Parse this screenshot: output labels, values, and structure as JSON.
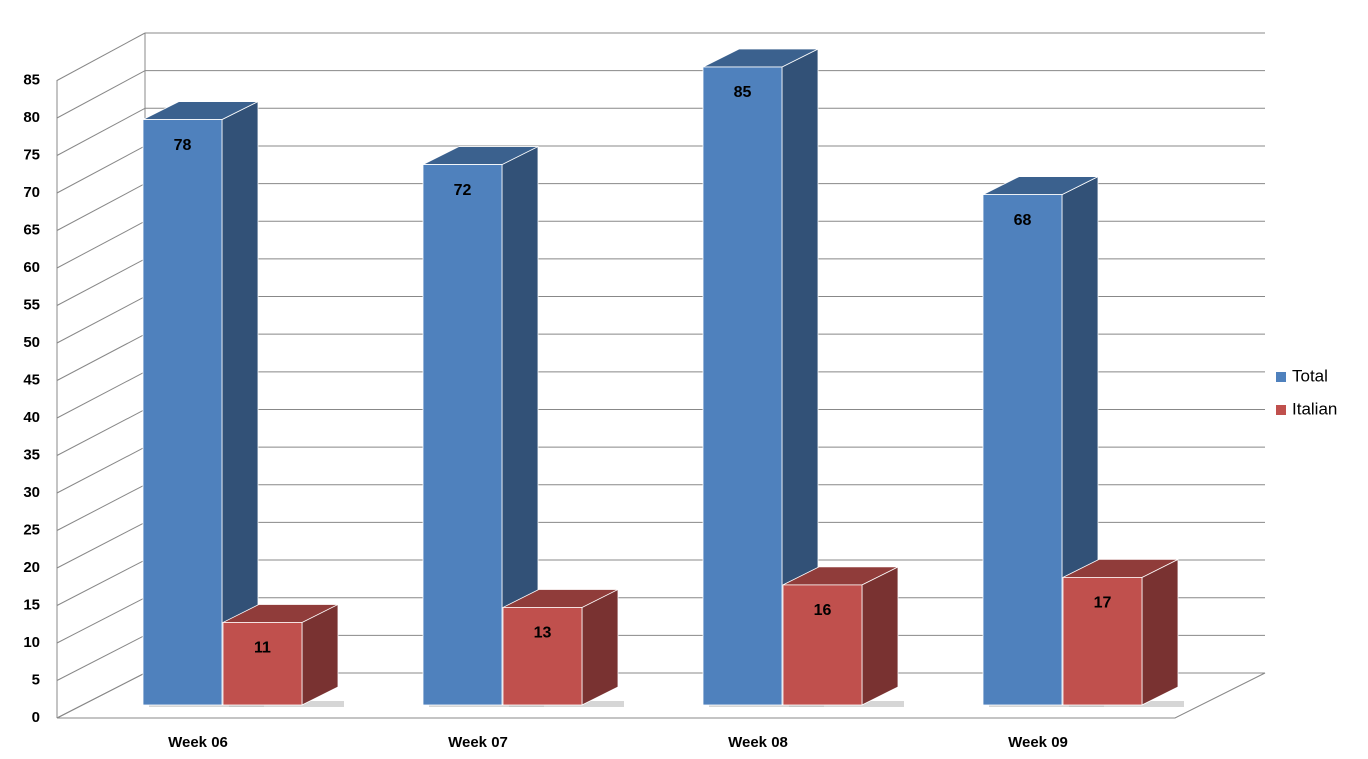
{
  "chart_data": {
    "type": "bar3d",
    "categories": [
      "Week 06",
      "Week 07",
      "Week 08",
      "Week 09"
    ],
    "series": [
      {
        "name": "Total",
        "color": "#4f81bd",
        "values": [
          78,
          72,
          85,
          68
        ]
      },
      {
        "name": "Italian",
        "color": "#c0504d",
        "values": [
          11,
          13,
          16,
          17
        ]
      }
    ],
    "ylim": [
      0,
      85
    ],
    "yticks": [
      0,
      5,
      10,
      15,
      20,
      25,
      30,
      35,
      40,
      45,
      50,
      55,
      60,
      65,
      70,
      75,
      80,
      85
    ],
    "grid": true,
    "legend": "right"
  }
}
